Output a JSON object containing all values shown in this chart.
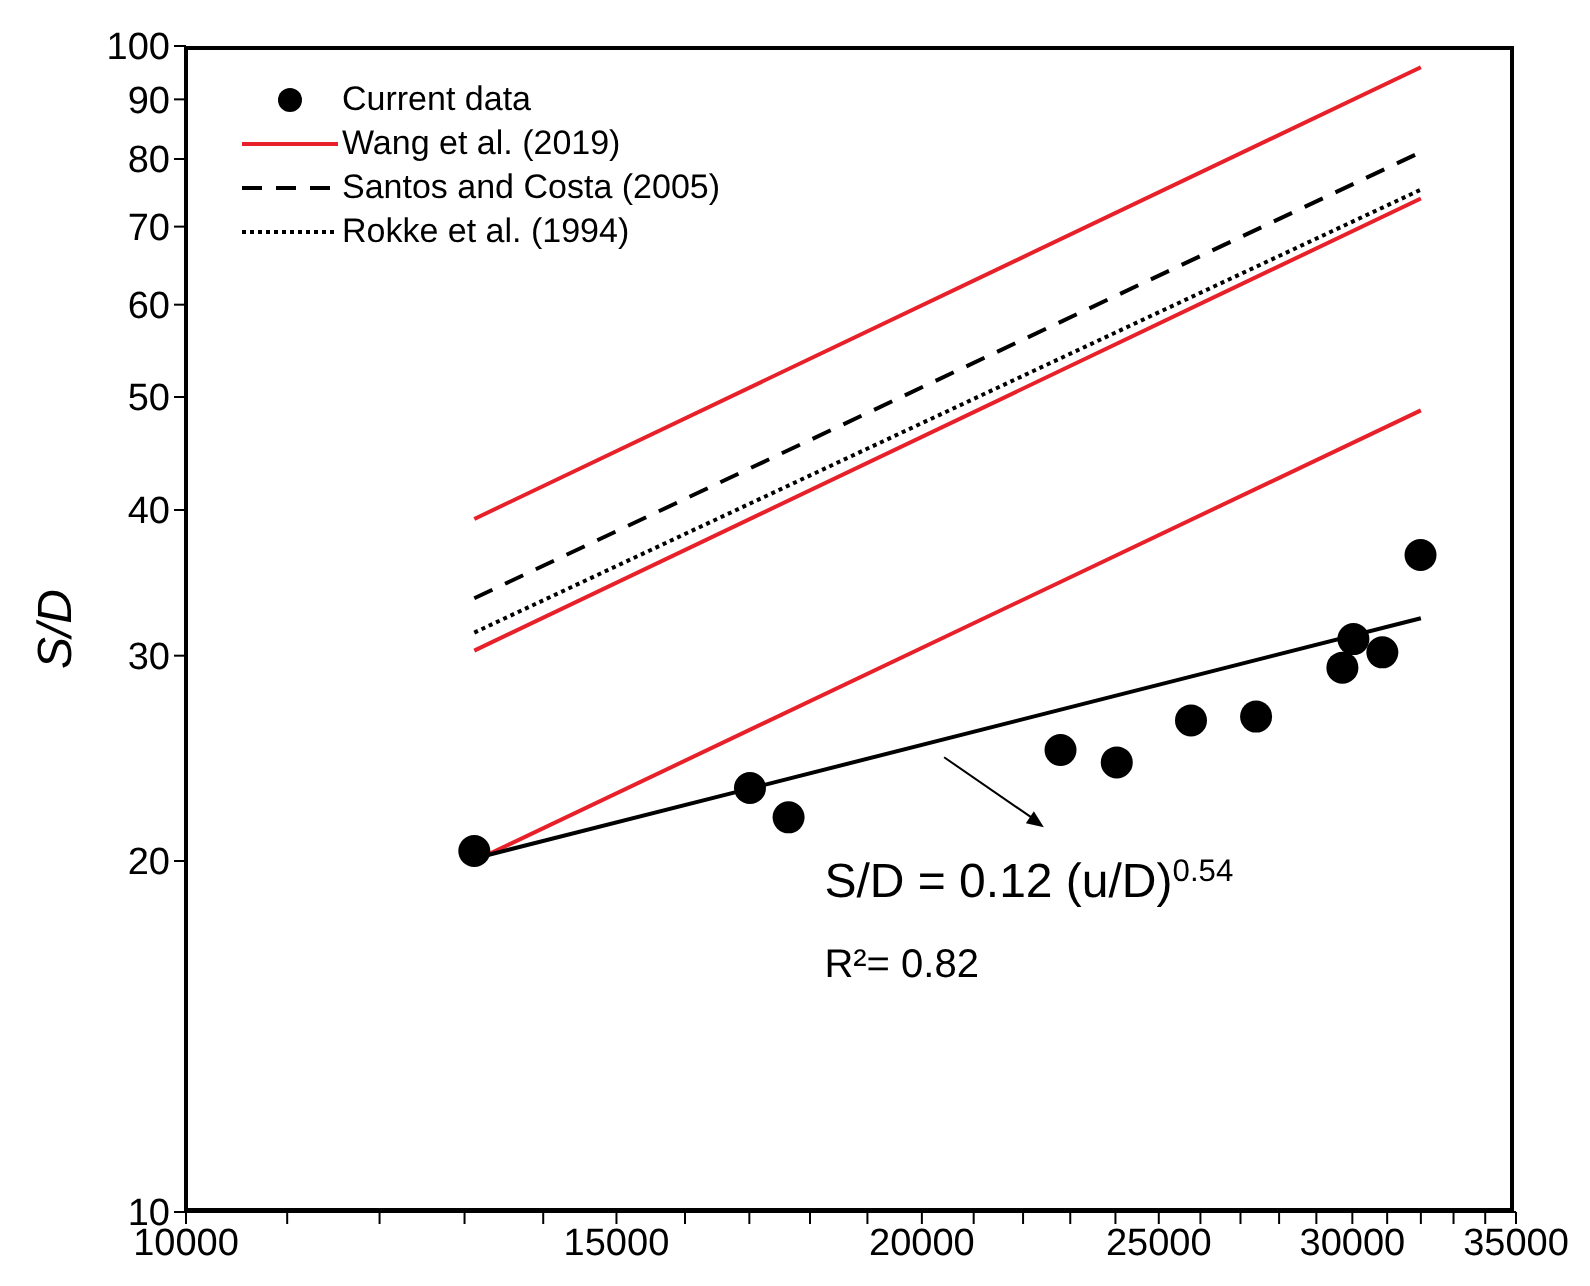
{
  "chart_data": {
    "type": "line",
    "ylabel": "S/D",
    "log": "xy",
    "xlim": [
      10000,
      35000
    ],
    "ylim": [
      10,
      100
    ],
    "xticks": [
      10000,
      {
        "value": 11000,
        "label": null
      },
      {
        "value": 12000,
        "label": null
      },
      {
        "value": 13000,
        "label": null
      },
      {
        "value": 14000,
        "label": null
      },
      15000,
      {
        "value": 16000,
        "label": null
      },
      {
        "value": 17000,
        "label": null
      },
      {
        "value": 18000,
        "label": null
      },
      {
        "value": 19000,
        "label": null
      },
      20000,
      {
        "value": 21000,
        "label": null
      },
      {
        "value": 22000,
        "label": null
      },
      {
        "value": 23000,
        "label": null
      },
      {
        "value": 24000,
        "label": null
      },
      25000,
      {
        "value": 26000,
        "label": null
      },
      {
        "value": 27000,
        "label": null
      },
      {
        "value": 28000,
        "label": null
      },
      {
        "value": 29000,
        "label": null
      },
      30000,
      {
        "value": 31000,
        "label": null
      },
      {
        "value": 32000,
        "label": null
      },
      {
        "value": 33000,
        "label": null
      },
      {
        "value": 34000,
        "label": null
      },
      35000
    ],
    "yticks": [
      10,
      20,
      30,
      40,
      50,
      60,
      70,
      80,
      90,
      100
    ],
    "grid": false,
    "legend": "top left",
    "series": [
      {
        "type": "scatter",
        "name": "Current data",
        "color": "#000000",
        "marker": "circle",
        "x": [
          13120,
          17010,
          17640,
          22790,
          24030,
          25770,
          27400,
          29720,
          30030,
          30860,
          31990
        ],
        "values": [
          20.4,
          23.1,
          21.8,
          24.9,
          24.3,
          26.4,
          26.6,
          29.3,
          31.0,
          30.2,
          36.6
        ]
      },
      {
        "type": "line",
        "name": "Wang et al. (2019)",
        "color": "#e8202a",
        "line_style": "solid",
        "x": [
          13120,
          32000
        ],
        "values": [
          39.3,
          95.9
        ]
      },
      {
        "type": "line",
        "color": "#e8202a",
        "line_style": "solid",
        "x": [
          13120,
          32000
        ],
        "values": [
          30.3,
          74
        ]
      },
      {
        "type": "line",
        "color": "#e8202a",
        "line_style": "solid",
        "x": [
          13120,
          32000
        ],
        "values": [
          20,
          48.7
        ]
      },
      {
        "type": "line",
        "name": "Santos and Costa (2005)",
        "color": "#000000",
        "line_style": "dashed",
        "x": [
          13120,
          32000
        ],
        "values": [
          33.6,
          81.1
        ]
      },
      {
        "type": "line",
        "name": "Rokke et al. (1994)",
        "color": "#000000",
        "line_style": "dotted",
        "x": [
          13120,
          32000
        ],
        "values": [
          31.4,
          75.3
        ]
      },
      {
        "type": "line",
        "color": "#000000",
        "line_style": "solid",
        "x": [
          13120,
          32000
        ],
        "values": [
          20.1,
          32.3
        ]
      }
    ],
    "annotations": [
      "S/D = 0.12 (u/D)$^{0.54}$",
      "R²= 0.82"
    ]
  }
}
